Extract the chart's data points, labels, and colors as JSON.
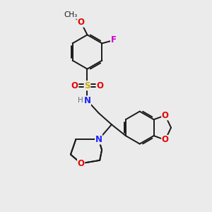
{
  "bg_color": "#ebebeb",
  "bond_color": "#1a1a1a",
  "bond_width": 1.4,
  "atom_colors": {
    "O": "#e60000",
    "N": "#2020ff",
    "S": "#ccaa00",
    "F": "#cc00cc",
    "H": "#607080",
    "C": "#1a1a1a"
  },
  "font_size": 8.5,
  "small_font": 7.5
}
